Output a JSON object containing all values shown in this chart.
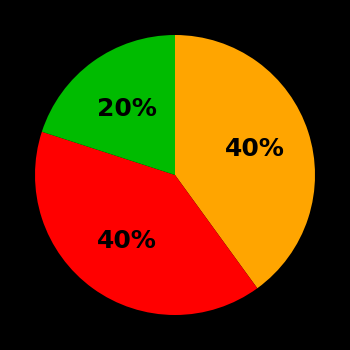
{
  "slices": [
    40,
    40,
    20
  ],
  "colors": [
    "#FFA500",
    "#FF0000",
    "#00BB00"
  ],
  "labels": [
    "40%",
    "40%",
    "20%"
  ],
  "background_color": "#000000",
  "text_color": "#000000",
  "startangle": 90,
  "label_fontsize": 18,
  "label_fontweight": "bold",
  "label_radii": [
    0.6,
    0.58,
    0.58
  ],
  "label_angles_deg": [
    18,
    -126,
    -234
  ]
}
